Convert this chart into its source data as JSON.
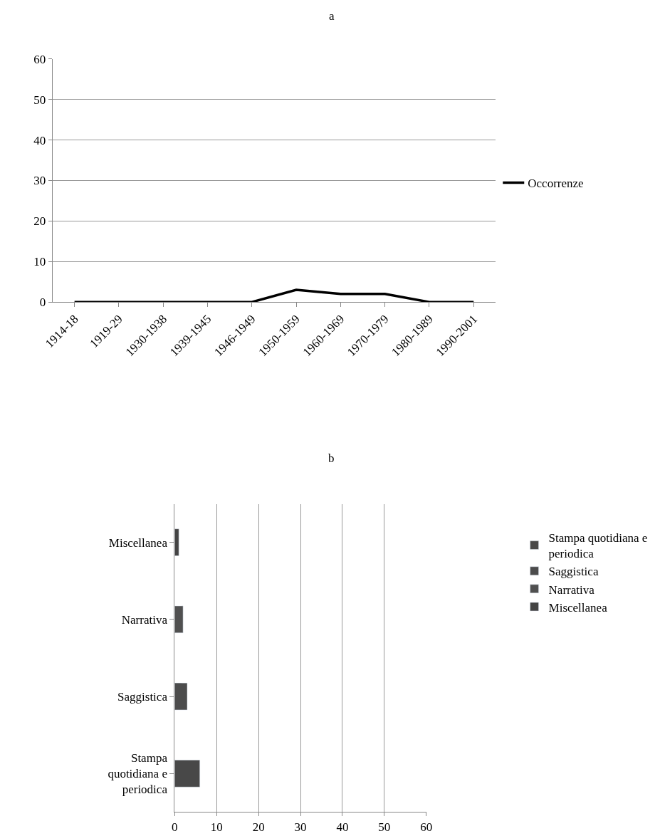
{
  "chart_data": [
    {
      "type": "line",
      "title": "a",
      "categories": [
        "1914-18",
        "1919-29",
        "1930-1938",
        "1939-1945",
        "1946-1949",
        "1950-1959",
        "1960-1969",
        "1970-1979",
        "1980-1989",
        "1990-2001"
      ],
      "series": [
        {
          "name": "Occorrenze",
          "color": "#000000",
          "values": [
            0,
            0,
            0,
            0,
            0,
            3,
            2,
            2,
            0,
            0
          ]
        }
      ],
      "ylim": [
        0,
        60
      ],
      "yticks": [
        0,
        10,
        20,
        30,
        40,
        50,
        60
      ],
      "grid": "y",
      "legend": "right",
      "marker": "none",
      "line_style": "solid"
    },
    {
      "type": "bar",
      "title": "b",
      "orientation": "horizontal",
      "categories": [
        "Miscellanea",
        "Narrativa",
        "Saggistica",
        "Stampa quotidiana e periodica"
      ],
      "series": [
        {
          "name": "Stampa quotidiana e periodica",
          "color": "#484848",
          "values": [
            null,
            null,
            null,
            6
          ]
        },
        {
          "name": "Saggistica",
          "color": "#4c4c4c",
          "values": [
            null,
            null,
            3,
            null
          ]
        },
        {
          "name": "Narrativa",
          "color": "#505050",
          "values": [
            null,
            2,
            null,
            null
          ]
        },
        {
          "name": "Miscellanea",
          "color": "#444444",
          "values": [
            1,
            null,
            null,
            null
          ]
        }
      ],
      "xlim": [
        0,
        60
      ],
      "xticks": [
        0,
        10,
        20,
        30,
        40,
        50,
        60
      ],
      "grid": "x",
      "legend": "right"
    }
  ]
}
